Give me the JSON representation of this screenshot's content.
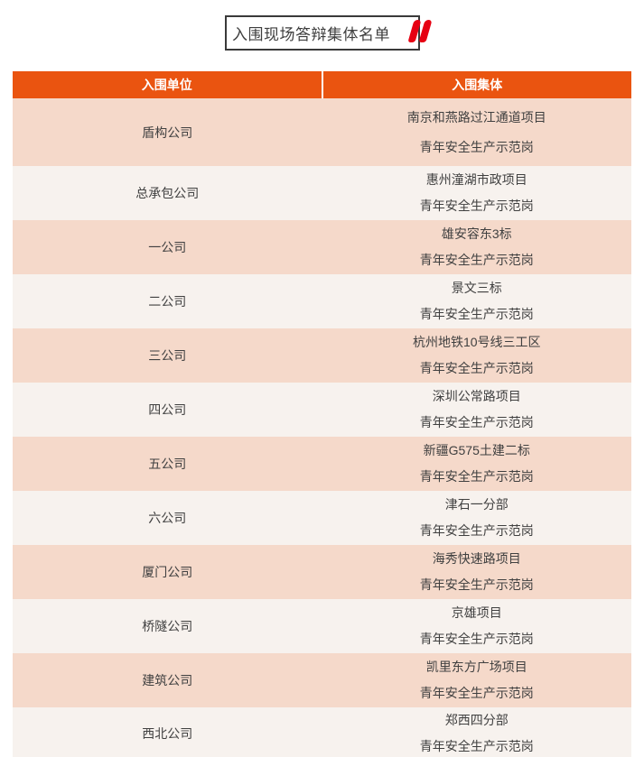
{
  "title": {
    "text": "入围现场答辩集体名单",
    "quote_icon": "double-quote"
  },
  "colors": {
    "header_bg": "#ea5410",
    "header_text": "#ffffff",
    "row_odd": "#f5d9ca",
    "row_even": "#f7f2ee",
    "body_text": "#404040",
    "title_text": "#3e3e3e",
    "title_border": "#3a3a3a",
    "quote": "#e60012"
  },
  "table": {
    "columns": [
      {
        "label": "入围单位"
      },
      {
        "label": "入围集体"
      }
    ],
    "rows": [
      {
        "unit": "盾构公司",
        "collective_line1": "南京和燕路过江通道项目",
        "collective_line2": "青年安全生产示范岗"
      },
      {
        "unit": "总承包公司",
        "collective_line1": "惠州潼湖市政项目",
        "collective_line2": "青年安全生产示范岗"
      },
      {
        "unit": "一公司",
        "collective_line1": "雄安容东3标",
        "collective_line2": "青年安全生产示范岗"
      },
      {
        "unit": "二公司",
        "collective_line1": "景文三标",
        "collective_line2": "青年安全生产示范岗"
      },
      {
        "unit": "三公司",
        "collective_line1": "杭州地铁10号线三工区",
        "collective_line2": "青年安全生产示范岗"
      },
      {
        "unit": "四公司",
        "collective_line1": "深圳公常路项目",
        "collective_line2": "青年安全生产示范岗"
      },
      {
        "unit": "五公司",
        "collective_line1": "新疆G575土建二标",
        "collective_line2": "青年安全生产示范岗"
      },
      {
        "unit": "六公司",
        "collective_line1": "津石一分部",
        "collective_line2": "青年安全生产示范岗"
      },
      {
        "unit": "厦门公司",
        "collective_line1": "海秀快速路项目",
        "collective_line2": "青年安全生产示范岗"
      },
      {
        "unit": "桥隧公司",
        "collective_line1": "京雄项目",
        "collective_line2": "青年安全生产示范岗"
      },
      {
        "unit": "建筑公司",
        "collective_line1": "凯里东方广场项目",
        "collective_line2": "青年安全生产示范岗"
      },
      {
        "unit": "西北公司",
        "collective_line1": "郑西四分部",
        "collective_line2": "青年安全生产示范岗"
      }
    ]
  }
}
